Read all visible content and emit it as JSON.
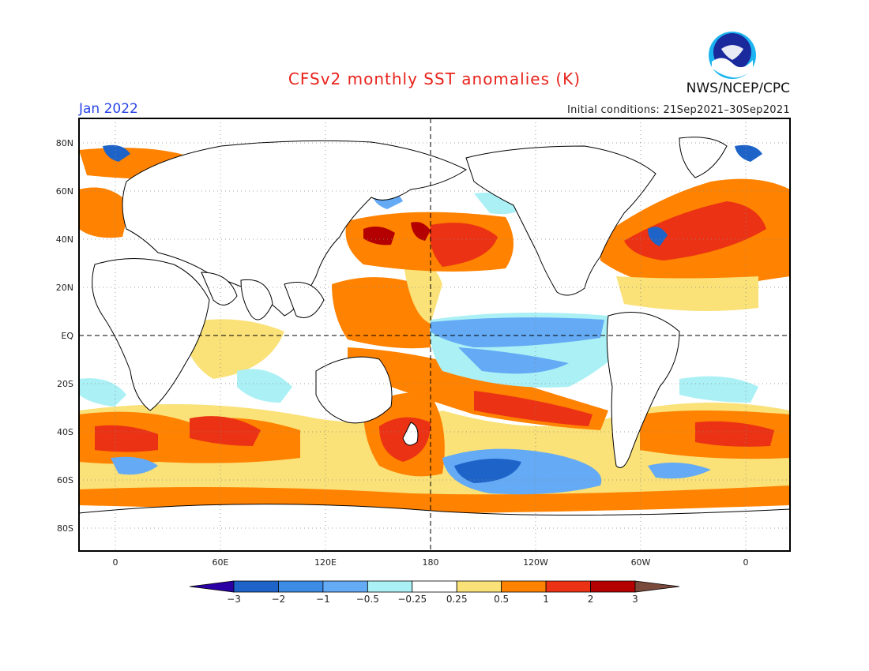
{
  "header": {
    "title": "CFSv2 monthly SST anomalies (K)",
    "valid_month": "Jan 2022",
    "initial_conditions": "Initial conditions: 21Sep2021–30Sep2021",
    "agency": "NWS/NCEP/CPC",
    "logo_text": "NOAA"
  },
  "map": {
    "projection": "equirectangular",
    "lon_range": [
      -20,
      360
    ],
    "lat_range": [
      -90,
      90
    ],
    "lat_labels": [
      "80N",
      "60N",
      "40N",
      "20N",
      "EQ",
      "20S",
      "40S",
      "60S",
      "80S"
    ],
    "lon_labels": [
      "0",
      "60E",
      "120E",
      "180",
      "120W",
      "60W",
      "0"
    ],
    "grid": "dotted",
    "reference_lines": [
      "Equator",
      "180 meridian"
    ]
  },
  "colorbar": {
    "labels": [
      "−3",
      "−2",
      "−1",
      "−0.5",
      "−0.25",
      "0.25",
      "0.5",
      "1",
      "2",
      "3"
    ],
    "colors": [
      "#2b00a4",
      "#1e64c8",
      "#3c8ce6",
      "#64aaf5",
      "#aaf0f5",
      "#ffffff",
      "#fae178",
      "#ff8200",
      "#eb3214",
      "#b40000",
      "#7a4a3c"
    ]
  }
}
